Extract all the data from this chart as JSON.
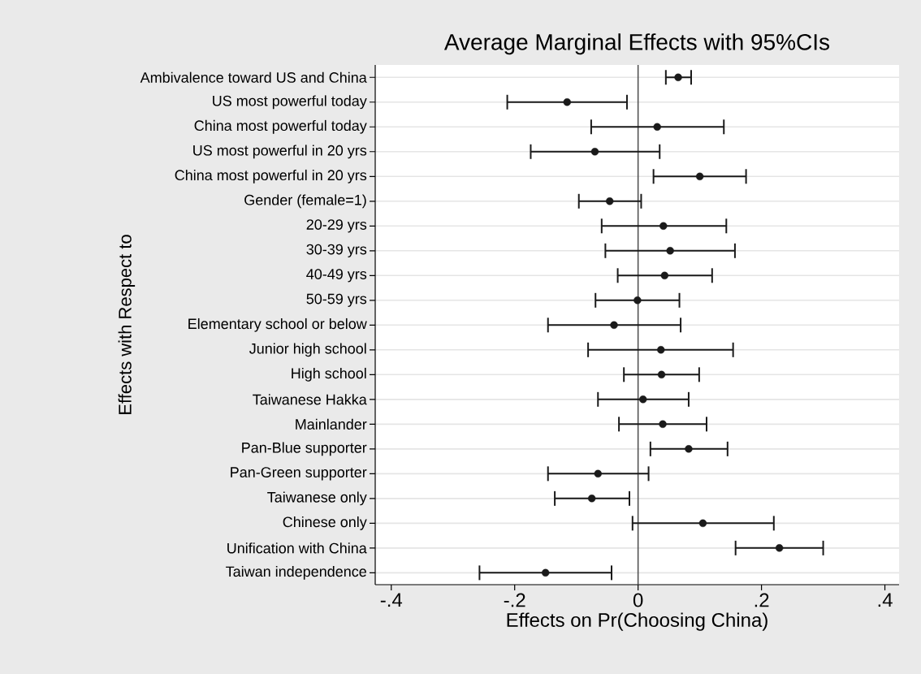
{
  "chart_data": {
    "type": "scatter",
    "title": "Average Marginal Effects with 95%CIs",
    "xlabel": "Effects on Pr(Choosing China)",
    "ylabel": "Effects with Respect to",
    "orientation": "horizontal",
    "categories": [
      "Ambivalence toward US and China",
      "US most powerful today",
      "China most powerful today",
      "US most powerful in 20 yrs",
      "China most powerful in 20 yrs",
      "Gender (female=1)",
      "20-29 yrs",
      "30-39 yrs",
      "40-49 yrs",
      "50-59 yrs",
      "Elementary school or below",
      "Junior high school",
      "High school",
      "Taiwanese Hakka",
      "Mainlander",
      "Pan-Blue supporter",
      "Pan-Green supporter",
      "Taiwanese only",
      "Chinese only",
      "Unification with China",
      "Taiwan independence"
    ],
    "values": [
      0.065,
      -0.115,
      0.031,
      -0.07,
      0.1,
      -0.046,
      0.041,
      0.052,
      0.043,
      -0.001,
      -0.039,
      0.037,
      0.038,
      0.008,
      0.04,
      0.082,
      -0.065,
      -0.075,
      0.105,
      0.229,
      -0.15
    ],
    "errors": [
      [
        0.045,
        0.086
      ],
      [
        -0.212,
        -0.018
      ],
      [
        -0.076,
        0.139
      ],
      [
        -0.174,
        0.035
      ],
      [
        0.025,
        0.175
      ],
      [
        -0.096,
        0.005
      ],
      [
        -0.059,
        0.143
      ],
      [
        -0.053,
        0.157
      ],
      [
        -0.033,
        0.12
      ],
      [
        -0.069,
        0.067
      ],
      [
        -0.146,
        0.069
      ],
      [
        -0.081,
        0.154
      ],
      [
        -0.023,
        0.099
      ],
      [
        -0.065,
        0.082
      ],
      [
        -0.031,
        0.111
      ],
      [
        0.02,
        0.145
      ],
      [
        -0.146,
        0.017
      ],
      [
        -0.135,
        -0.014
      ],
      [
        -0.009,
        0.22
      ],
      [
        0.158,
        0.3
      ],
      [
        -0.257,
        -0.043
      ]
    ],
    "color": "#1a1a1a",
    "marker": "circle",
    "grid": "y",
    "xlim": [
      -0.426,
      0.423
    ],
    "xticks": [
      {
        "value": -0.4,
        "label": "-.4"
      },
      {
        "value": -0.2,
        "label": "-.2"
      },
      {
        "value": 0,
        "label": "0"
      },
      {
        "value": 0.2,
        "label": ".2"
      },
      {
        "value": 0.4,
        "label": ".4"
      }
    ],
    "ref_lines": [
      {
        "axis": "x",
        "value": 0,
        "color": "#4a4a4a"
      }
    ]
  }
}
